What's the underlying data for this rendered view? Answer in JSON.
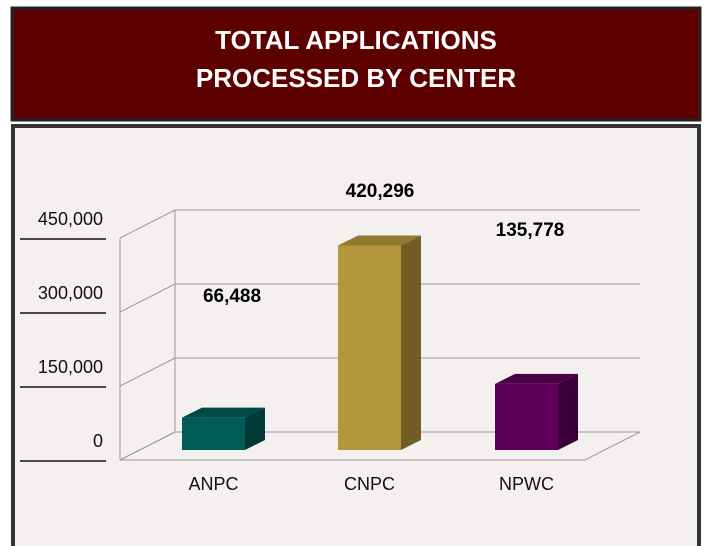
{
  "chart_data": {
    "type": "bar3d",
    "title": [
      "TOTAL APPLICATIONS",
      "PROCESSED BY CENTER"
    ],
    "categories": [
      "ANPC",
      "CNPC",
      "NPWC"
    ],
    "values": [
      66488,
      420296,
      135778
    ],
    "value_labels": [
      "66,488",
      "420,296",
      "135,778"
    ],
    "colors": [
      "#005c57",
      "#b5973b",
      "#5e0059"
    ],
    "ylim": [
      0,
      450000
    ],
    "yticks": [
      0,
      {
        "value": 150000,
        "label": "150,000"
      },
      {
        "value": 300000,
        "label": "300,000"
      },
      {
        "value": 450000,
        "label": "450,000"
      }
    ],
    "grid": true
  }
}
